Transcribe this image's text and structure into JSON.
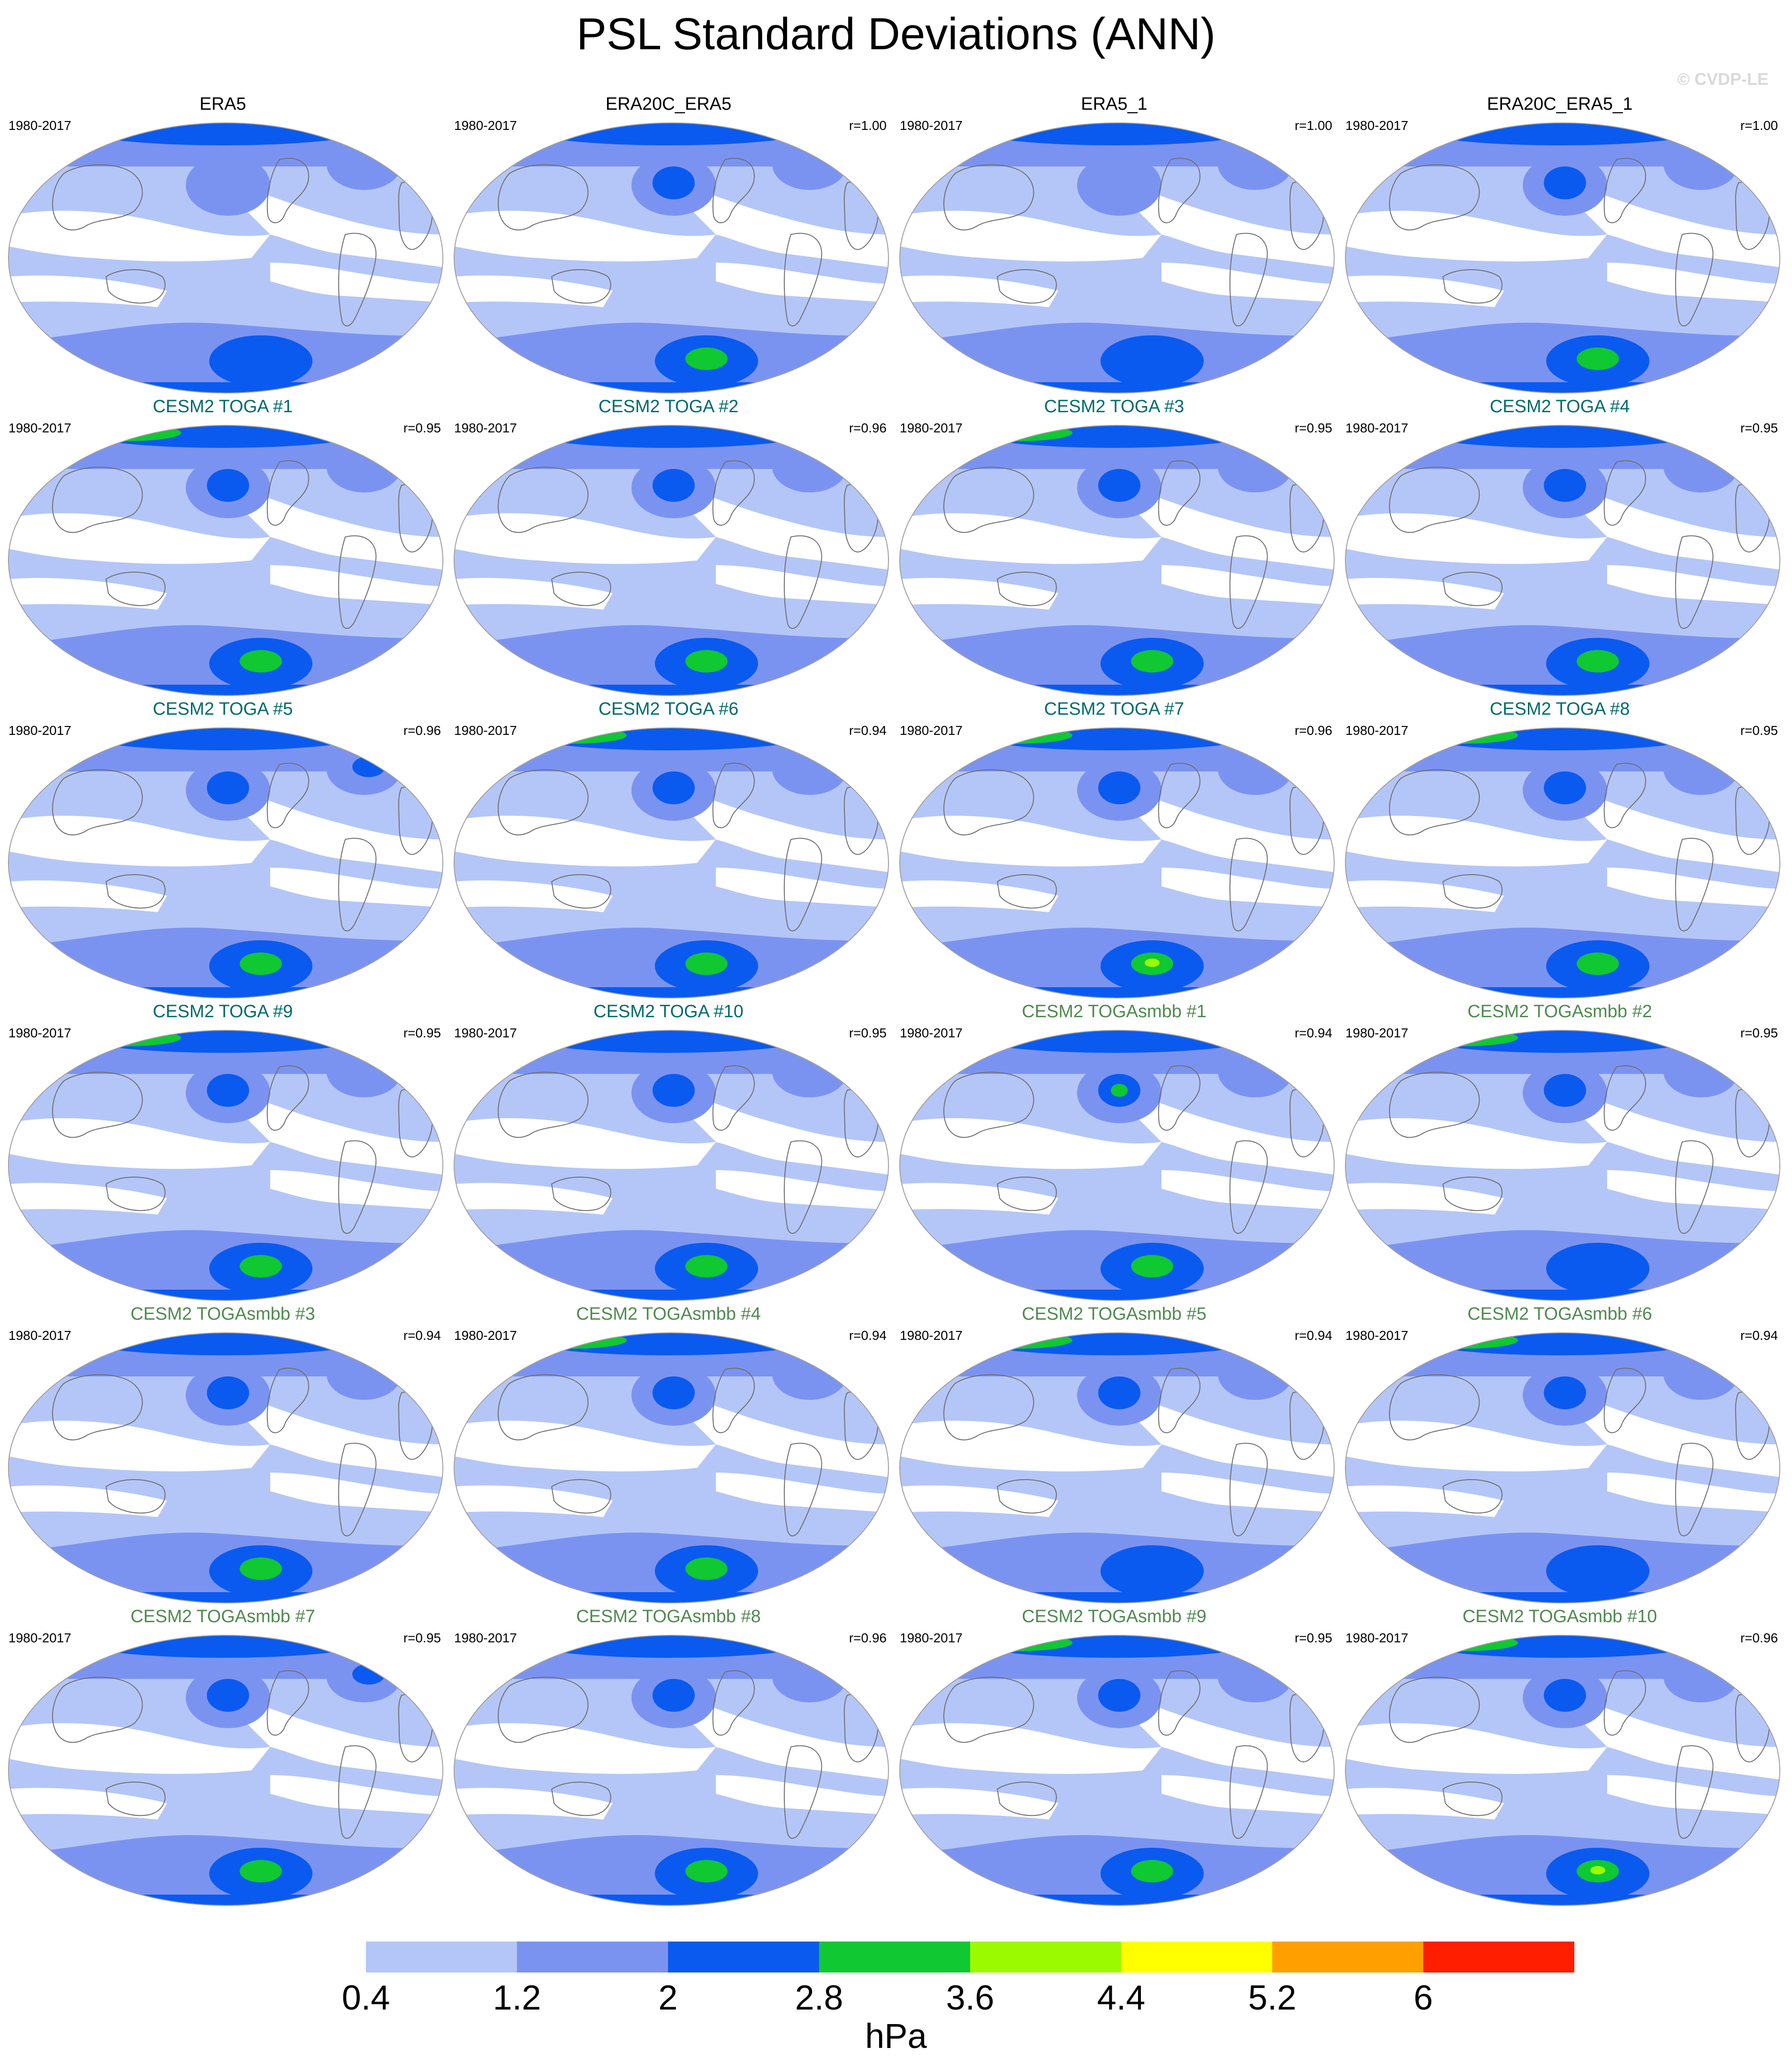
{
  "title": "PSL Standard Deviations (ANN)",
  "credit": "© CVDP-LE",
  "units": "hPa",
  "colors": {
    "levels": [
      "#ffffff",
      "#b4c6f8",
      "#7b93f0",
      "#0a5af0",
      "#0fc832",
      "#9bfa00",
      "#ffff00",
      "#ffa000",
      "#ff1e00"
    ],
    "title_obs": "#000000",
    "title_toga": "#006b6b",
    "title_smbb": "#4f8a4f",
    "coast": "#707070",
    "border": "#a0a0a0"
  },
  "colorbar": {
    "ticks": [
      "0.4",
      "1.2",
      "2",
      "2.8",
      "3.6",
      "4.4",
      "5.2",
      "6"
    ]
  },
  "chart_data": {
    "type": "contour-map-panels",
    "variable": "PSL",
    "units": "hPa",
    "levels": [
      0.4,
      1.2,
      2,
      2.8,
      3.6,
      4.4,
      5.2,
      6
    ],
    "panels": [
      {
        "title": "ERA5",
        "period": "1980-2017",
        "r": "",
        "group": "obs",
        "north_max": 2,
        "south_max": 2,
        "np_max": 1,
        "na_max": 1
      },
      {
        "title": "ERA20C_ERA5",
        "period": "1980-2017",
        "r": "r=1.00",
        "group": "obs",
        "north_max": 2,
        "south_max": 3,
        "np_max": 2,
        "na_max": 1
      },
      {
        "title": "ERA5_1",
        "period": "1980-2017",
        "r": "r=1.00",
        "group": "obs",
        "north_max": 2,
        "south_max": 2,
        "np_max": 1,
        "na_max": 1
      },
      {
        "title": "ERA20C_ERA5_1",
        "period": "1980-2017",
        "r": "r=1.00",
        "group": "obs",
        "north_max": 2,
        "south_max": 3,
        "np_max": 2,
        "na_max": 1
      },
      {
        "title": "CESM2 TOGA #1",
        "period": "1980-2017",
        "r": "r=0.95",
        "group": "toga",
        "north_max": 3,
        "south_max": 3,
        "np_max": 2,
        "na_max": 1
      },
      {
        "title": "CESM2 TOGA #2",
        "period": "1980-2017",
        "r": "r=0.96",
        "group": "toga",
        "north_max": 2,
        "south_max": 3,
        "np_max": 2,
        "na_max": 1
      },
      {
        "title": "CESM2 TOGA #3",
        "period": "1980-2017",
        "r": "r=0.95",
        "group": "toga",
        "north_max": 3,
        "south_max": 3,
        "np_max": 2,
        "na_max": 1
      },
      {
        "title": "CESM2 TOGA #4",
        "period": "1980-2017",
        "r": "r=0.95",
        "group": "toga",
        "north_max": 2,
        "south_max": 3,
        "np_max": 2,
        "na_max": 1
      },
      {
        "title": "CESM2 TOGA #5",
        "period": "1980-2017",
        "r": "r=0.96",
        "group": "toga",
        "north_max": 2,
        "south_max": 3,
        "np_max": 2,
        "na_max": 2
      },
      {
        "title": "CESM2 TOGA #6",
        "period": "1980-2017",
        "r": "r=0.94",
        "group": "toga",
        "north_max": 3,
        "south_max": 3,
        "np_max": 2,
        "na_max": 1
      },
      {
        "title": "CESM2 TOGA #7",
        "period": "1980-2017",
        "r": "r=0.96",
        "group": "toga",
        "north_max": 3,
        "south_max": 4,
        "np_max": 2,
        "na_max": 1
      },
      {
        "title": "CESM2 TOGA #8",
        "period": "1980-2017",
        "r": "r=0.95",
        "group": "toga",
        "north_max": 3,
        "south_max": 3,
        "np_max": 2,
        "na_max": 1
      },
      {
        "title": "CESM2 TOGA #9",
        "period": "1980-2017",
        "r": "r=0.95",
        "group": "toga",
        "north_max": 3,
        "south_max": 3,
        "np_max": 2,
        "na_max": 1
      },
      {
        "title": "CESM2 TOGA #10",
        "period": "1980-2017",
        "r": "r=0.95",
        "group": "toga",
        "north_max": 2,
        "south_max": 3,
        "np_max": 2,
        "na_max": 1
      },
      {
        "title": "CESM2 TOGAsmbb #1",
        "period": "1980-2017",
        "r": "r=0.94",
        "group": "smbb",
        "north_max": 2,
        "south_max": 3,
        "np_max": 3,
        "na_max": 1
      },
      {
        "title": "CESM2 TOGAsmbb #2",
        "period": "1980-2017",
        "r": "r=0.95",
        "group": "smbb",
        "north_max": 3,
        "south_max": 2,
        "np_max": 2,
        "na_max": 1
      },
      {
        "title": "CESM2 TOGAsmbb #3",
        "period": "1980-2017",
        "r": "r=0.94",
        "group": "smbb",
        "north_max": 2,
        "south_max": 3,
        "np_max": 2,
        "na_max": 1
      },
      {
        "title": "CESM2 TOGAsmbb #4",
        "period": "1980-2017",
        "r": "r=0.94",
        "group": "smbb",
        "north_max": 5,
        "south_max": 3,
        "np_max": 2,
        "na_max": 1
      },
      {
        "title": "CESM2 TOGAsmbb #5",
        "period": "1980-2017",
        "r": "r=0.94",
        "group": "smbb",
        "north_max": 3,
        "south_max": 2,
        "np_max": 2,
        "na_max": 1
      },
      {
        "title": "CESM2 TOGAsmbb #6",
        "period": "1980-2017",
        "r": "r=0.94",
        "group": "smbb",
        "north_max": 3,
        "south_max": 2,
        "np_max": 2,
        "na_max": 1
      },
      {
        "title": "CESM2 TOGAsmbb #7",
        "period": "1980-2017",
        "r": "r=0.95",
        "group": "smbb",
        "north_max": 2,
        "south_max": 3,
        "np_max": 2,
        "na_max": 2
      },
      {
        "title": "CESM2 TOGAsmbb #8",
        "period": "1980-2017",
        "r": "r=0.96",
        "group": "smbb",
        "north_max": 2,
        "south_max": 3,
        "np_max": 2,
        "na_max": 1
      },
      {
        "title": "CESM2 TOGAsmbb #9",
        "period": "1980-2017",
        "r": "r=0.95",
        "group": "smbb",
        "north_max": 3,
        "south_max": 3,
        "np_max": 2,
        "na_max": 1
      },
      {
        "title": "CESM2 TOGAsmbb #10",
        "period": "1980-2017",
        "r": "r=0.96",
        "group": "smbb",
        "north_max": 3,
        "south_max": 4,
        "np_max": 2,
        "na_max": 1
      }
    ]
  }
}
